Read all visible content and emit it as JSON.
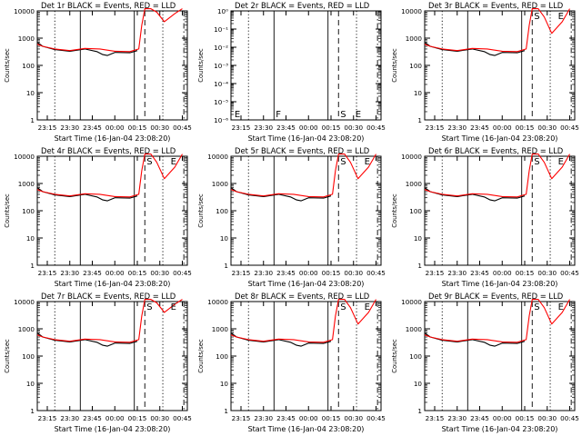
{
  "figure": {
    "background": "#ffffff",
    "axis_color": "#000000",
    "events_color": "#000000",
    "lld_color": "#ff0000"
  },
  "chart_data": [
    {
      "type": "line",
      "title": "Det 1r BLACK = Events, RED = LLD",
      "ylabel": "Counts/sec",
      "xlabel": "Start Time (16-Jan-04 23:08:20)",
      "xlim": [
        "23:08:20",
        "00:48:20"
      ],
      "x_ticks": [
        "23:15",
        "23:30",
        "23:45",
        "00:00",
        "00:15",
        "00:30",
        "00:45"
      ],
      "y_scale": "log",
      "ylim": [
        1,
        10000
      ],
      "y_ticks": [
        "1",
        "10",
        "100",
        "1000",
        "10000"
      ],
      "markers": [],
      "series": [
        {
          "color": "#000000",
          "x": [
            "23:08:20",
            "23:12",
            "23:20",
            "23:30",
            "23:40",
            "23:48",
            "23:52",
            "23:55",
            "24:00",
            "24:10",
            "24:15"
          ],
          "values": [
            700,
            500,
            380,
            330,
            400,
            320,
            250,
            230,
            300,
            290,
            350
          ]
        },
        {
          "color": "#ff0000",
          "x": [
            "23:08:20",
            "23:12",
            "23:20",
            "23:30",
            "23:40",
            "23:50",
            "24:00",
            "24:10",
            "24:16",
            "24:18",
            "24:20",
            "24:24",
            "24:28",
            "24:33",
            "24:40",
            "24:45"
          ],
          "values": [
            600,
            500,
            400,
            350,
            420,
            400,
            330,
            320,
            400,
            3000,
            12000,
            12000,
            9000,
            4000,
            8000,
            12000
          ]
        }
      ]
    },
    {
      "type": "line",
      "title": "Det 2r BLACK = Events, RED = LLD",
      "ylabel": "Counts/sec",
      "xlabel": "Start Time (16-Jan-04 23:08:20)",
      "xlim": [
        "23:08:20",
        "00:48:20"
      ],
      "x_ticks": [
        "23:15",
        "23:30",
        "23:45",
        "00:00",
        "00:15",
        "00:30",
        "00:45"
      ],
      "y_scale": "log",
      "ylim": [
        1e-06,
        1
      ],
      "y_ticks": [
        "10⁻⁶",
        "10⁻⁵",
        "10⁻⁴",
        "10⁻³",
        "10⁻²",
        "10⁻¹",
        "10⁰"
      ],
      "markers": [
        "E",
        "F",
        "S",
        "E"
      ],
      "series": []
    },
    {
      "type": "line",
      "title": "Det 3r BLACK = Events, RED = LLD",
      "ylabel": "Counts/sec",
      "xlabel": "Start Time (16-Jan-04 23:08:20)",
      "xlim": [
        "23:08:20",
        "00:48:20"
      ],
      "x_ticks": [
        "23:15",
        "23:30",
        "23:45",
        "00:00",
        "00:15",
        "00:30",
        "00:45"
      ],
      "y_scale": "log",
      "ylim": [
        1,
        10000
      ],
      "y_ticks": [
        "1",
        "10",
        "100",
        "1000",
        "10000"
      ],
      "markers": [
        "S",
        "E"
      ],
      "series": [
        {
          "color": "#000000",
          "x": [
            "23:08:20",
            "23:12",
            "23:20",
            "23:30",
            "23:40",
            "23:48",
            "23:52",
            "23:55",
            "24:00",
            "24:10",
            "24:15"
          ],
          "values": [
            700,
            500,
            380,
            330,
            400,
            320,
            250,
            230,
            300,
            290,
            350
          ]
        },
        {
          "color": "#ff0000",
          "x": [
            "23:08:20",
            "23:12",
            "23:20",
            "23:30",
            "23:40",
            "23:50",
            "24:00",
            "24:10",
            "24:16",
            "24:18",
            "24:20",
            "24:24",
            "24:28",
            "24:33",
            "24:40",
            "24:45"
          ],
          "values": [
            600,
            500,
            400,
            350,
            420,
            400,
            330,
            320,
            400,
            3000,
            12000,
            12000,
            6000,
            1500,
            4000,
            12000
          ]
        }
      ]
    },
    {
      "type": "line",
      "title": "Det 4r BLACK = Events, RED = LLD",
      "ylabel": "Counts/sec",
      "xlabel": "Start Time (16-Jan-04 23:08:20)",
      "xlim": [
        "23:08:20",
        "00:48:20"
      ],
      "x_ticks": [
        "23:15",
        "23:30",
        "23:45",
        "00:00",
        "00:15",
        "00:30",
        "00:45"
      ],
      "y_scale": "log",
      "ylim": [
        1,
        10000
      ],
      "y_ticks": [
        "1",
        "10",
        "100",
        "1000",
        "10000"
      ],
      "markers": [
        "S",
        "E"
      ],
      "series": [
        {
          "color": "#000000",
          "x": [
            "23:08:20",
            "23:12",
            "23:20",
            "23:30",
            "23:40",
            "23:48",
            "23:52",
            "23:55",
            "24:00",
            "24:10",
            "24:15"
          ],
          "values": [
            700,
            500,
            380,
            330,
            400,
            320,
            250,
            230,
            300,
            290,
            350
          ]
        },
        {
          "color": "#ff0000",
          "x": [
            "23:08:20",
            "23:12",
            "23:20",
            "23:30",
            "23:40",
            "23:50",
            "24:00",
            "24:10",
            "24:16",
            "24:18",
            "24:20",
            "24:24",
            "24:28",
            "24:33",
            "24:40",
            "24:45"
          ],
          "values": [
            600,
            500,
            400,
            350,
            420,
            400,
            330,
            320,
            400,
            3000,
            12000,
            12000,
            6000,
            1500,
            4000,
            12000
          ]
        }
      ]
    },
    {
      "type": "line",
      "title": "Det 5r BLACK = Events, RED = LLD",
      "ylabel": "Counts/sec",
      "xlabel": "Start Time (16-Jan-04 23:08:20)",
      "xlim": [
        "23:08:20",
        "00:48:20"
      ],
      "x_ticks": [
        "23:15",
        "23:30",
        "23:45",
        "00:00",
        "00:15",
        "00:30",
        "00:45"
      ],
      "y_scale": "log",
      "ylim": [
        1,
        10000
      ],
      "y_ticks": [
        "1",
        "10",
        "100",
        "1000",
        "10000"
      ],
      "markers": [
        "S",
        "E"
      ],
      "series": [
        {
          "color": "#000000",
          "x": [
            "23:08:20",
            "23:12",
            "23:20",
            "23:30",
            "23:40",
            "23:48",
            "23:52",
            "23:55",
            "24:00",
            "24:10",
            "24:15"
          ],
          "values": [
            700,
            500,
            380,
            330,
            400,
            320,
            250,
            230,
            300,
            290,
            350
          ]
        },
        {
          "color": "#ff0000",
          "x": [
            "23:08:20",
            "23:12",
            "23:20",
            "23:30",
            "23:40",
            "23:50",
            "24:00",
            "24:10",
            "24:16",
            "24:18",
            "24:20",
            "24:24",
            "24:28",
            "24:33",
            "24:40",
            "24:45"
          ],
          "values": [
            600,
            500,
            400,
            350,
            420,
            400,
            330,
            320,
            400,
            3000,
            12000,
            12000,
            6000,
            1500,
            4000,
            12000
          ]
        }
      ]
    },
    {
      "type": "line",
      "title": "Det 6r BLACK = Events, RED = LLD",
      "ylabel": "Counts/sec",
      "xlabel": "Start Time (16-Jan-04 23:08:20)",
      "xlim": [
        "23:08:20",
        "00:48:20"
      ],
      "x_ticks": [
        "23:15",
        "23:30",
        "23:45",
        "00:00",
        "00:15",
        "00:30",
        "00:45"
      ],
      "y_scale": "log",
      "ylim": [
        1,
        10000
      ],
      "y_ticks": [
        "1",
        "10",
        "100",
        "1000",
        "10000"
      ],
      "markers": [
        "S",
        "E"
      ],
      "series": [
        {
          "color": "#000000",
          "x": [
            "23:08:20",
            "23:12",
            "23:20",
            "23:30",
            "23:40",
            "23:48",
            "23:52",
            "23:55",
            "24:00",
            "24:10",
            "24:15"
          ],
          "values": [
            700,
            500,
            380,
            330,
            400,
            320,
            250,
            230,
            300,
            290,
            350
          ]
        },
        {
          "color": "#ff0000",
          "x": [
            "23:08:20",
            "23:12",
            "23:20",
            "23:30",
            "23:40",
            "23:50",
            "24:00",
            "24:10",
            "24:16",
            "24:18",
            "24:20",
            "24:24",
            "24:28",
            "24:33",
            "24:40",
            "24:45"
          ],
          "values": [
            600,
            500,
            400,
            350,
            420,
            400,
            330,
            320,
            400,
            3000,
            12000,
            12000,
            6000,
            1500,
            4000,
            12000
          ]
        }
      ]
    },
    {
      "type": "line",
      "title": "Det 7r BLACK = Events, RED = LLD",
      "ylabel": "Counts/sec",
      "xlabel": "Start Time (16-Jan-04 23:08:20)",
      "xlim": [
        "23:08:20",
        "00:48:20"
      ],
      "x_ticks": [
        "23:15",
        "23:30",
        "23:45",
        "00:00",
        "00:15",
        "00:30",
        "00:45"
      ],
      "y_scale": "log",
      "ylim": [
        1,
        10000
      ],
      "y_ticks": [
        "1",
        "10",
        "100",
        "1000",
        "10000"
      ],
      "markers": [
        "S",
        "E"
      ],
      "series": [
        {
          "color": "#000000",
          "x": [
            "23:08:20",
            "23:12",
            "23:20",
            "23:30",
            "23:40",
            "23:48",
            "23:52",
            "23:55",
            "24:00",
            "24:10",
            "24:15"
          ],
          "values": [
            700,
            500,
            380,
            330,
            400,
            320,
            250,
            230,
            300,
            290,
            350
          ]
        },
        {
          "color": "#ff0000",
          "x": [
            "23:08:20",
            "23:12",
            "23:20",
            "23:30",
            "23:40",
            "23:50",
            "24:00",
            "24:10",
            "24:16",
            "24:18",
            "24:20",
            "24:24",
            "24:28",
            "24:33",
            "24:40",
            "24:45"
          ],
          "values": [
            600,
            500,
            400,
            350,
            420,
            400,
            330,
            320,
            400,
            3000,
            12000,
            12000,
            9000,
            4000,
            8000,
            12000
          ]
        }
      ]
    },
    {
      "type": "line",
      "title": "Det 8r BLACK = Events, RED = LLD",
      "ylabel": "Counts/sec",
      "xlabel": "Start Time (16-Jan-04 23:08:20)",
      "xlim": [
        "23:08:20",
        "00:48:20"
      ],
      "x_ticks": [
        "23:15",
        "23:30",
        "23:45",
        "00:00",
        "00:15",
        "00:30",
        "00:45"
      ],
      "y_scale": "log",
      "ylim": [
        1,
        10000
      ],
      "y_ticks": [
        "1",
        "10",
        "100",
        "1000",
        "10000"
      ],
      "markers": [
        "S",
        "E"
      ],
      "series": [
        {
          "color": "#000000",
          "x": [
            "23:08:20",
            "23:12",
            "23:20",
            "23:30",
            "23:40",
            "23:48",
            "23:52",
            "23:55",
            "24:00",
            "24:10",
            "24:15"
          ],
          "values": [
            700,
            500,
            380,
            330,
            400,
            320,
            250,
            230,
            300,
            290,
            350
          ]
        },
        {
          "color": "#ff0000",
          "x": [
            "23:08:20",
            "23:12",
            "23:20",
            "23:30",
            "23:40",
            "23:50",
            "24:00",
            "24:10",
            "24:16",
            "24:18",
            "24:20",
            "24:24",
            "24:28",
            "24:33",
            "24:40",
            "24:45"
          ],
          "values": [
            600,
            500,
            400,
            350,
            420,
            400,
            330,
            320,
            400,
            3000,
            12000,
            12000,
            6000,
            1500,
            4000,
            12000
          ]
        }
      ]
    },
    {
      "type": "line",
      "title": "Det 9r BLACK = Events, RED = LLD",
      "ylabel": "Counts/sec",
      "xlabel": "Start Time (16-Jan-04 23:08:20)",
      "xlim": [
        "23:08:20",
        "00:48:20"
      ],
      "x_ticks": [
        "23:15",
        "23:30",
        "23:45",
        "00:00",
        "00:15",
        "00:30",
        "00:45"
      ],
      "y_scale": "log",
      "ylim": [
        1,
        10000
      ],
      "y_ticks": [
        "1",
        "10",
        "100",
        "1000",
        "10000"
      ],
      "markers": [
        "S",
        "E"
      ],
      "series": [
        {
          "color": "#000000",
          "x": [
            "23:08:20",
            "23:12",
            "23:20",
            "23:30",
            "23:40",
            "23:48",
            "23:52",
            "23:55",
            "24:00",
            "24:10",
            "24:15"
          ],
          "values": [
            700,
            500,
            380,
            330,
            400,
            320,
            250,
            230,
            300,
            290,
            350
          ]
        },
        {
          "color": "#ff0000",
          "x": [
            "23:08:20",
            "23:12",
            "23:20",
            "23:30",
            "23:40",
            "23:50",
            "24:00",
            "24:10",
            "24:16",
            "24:18",
            "24:20",
            "24:24",
            "24:28",
            "24:33",
            "24:40",
            "24:45"
          ],
          "values": [
            600,
            500,
            400,
            350,
            420,
            400,
            330,
            320,
            400,
            3000,
            12000,
            12000,
            6000,
            1500,
            4000,
            12000
          ]
        }
      ]
    }
  ]
}
